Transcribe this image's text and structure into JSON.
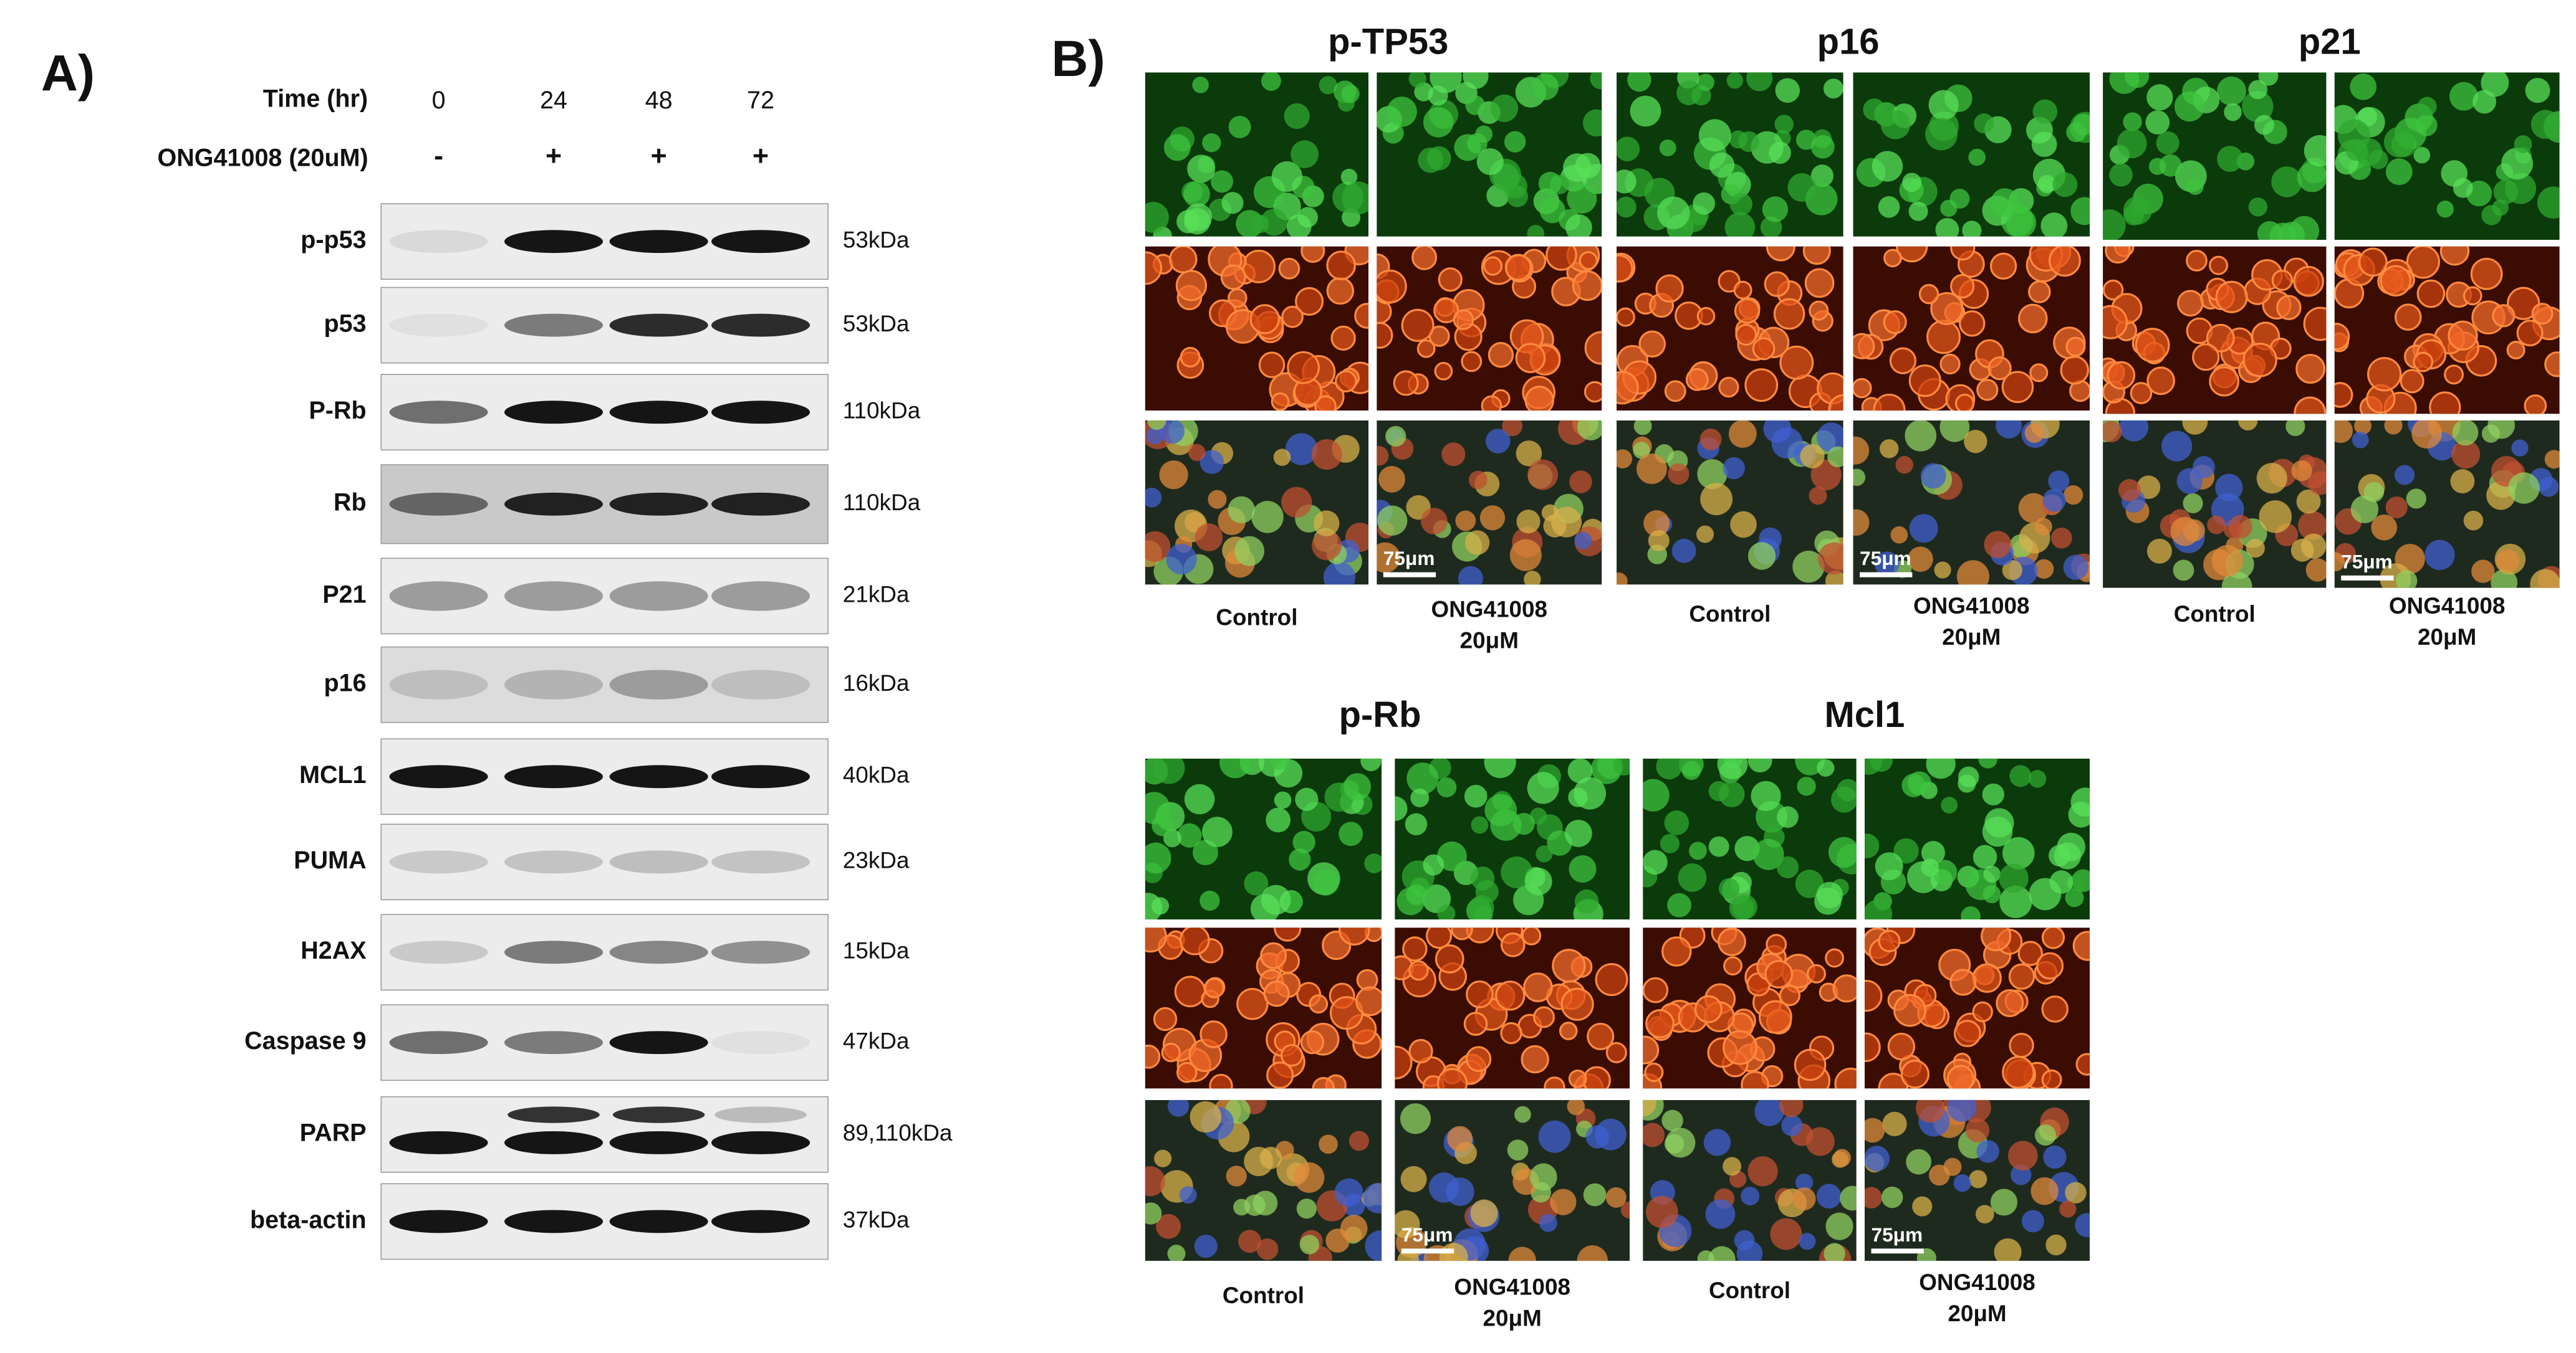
{
  "panel_a": {
    "label": "A)",
    "time_label": "Time (hr)",
    "times": [
      "0",
      "24",
      "48",
      "72"
    ],
    "treatment_label": "ONG41008 (20uM)",
    "treatment": [
      "-",
      "+",
      "+",
      "+"
    ],
    "blots": [
      {
        "protein": "p-p53",
        "size": "53kDa"
      },
      {
        "protein": "p53",
        "size": "53kDa"
      },
      {
        "protein": "P-Rb",
        "size": "110kDa"
      },
      {
        "protein": "Rb",
        "size": "110kDa"
      },
      {
        "protein": "P21",
        "size": "21kDa"
      },
      {
        "protein": "p16",
        "size": "16kDa"
      },
      {
        "protein": "MCL1",
        "size": "40kDa"
      },
      {
        "protein": "PUMA",
        "size": "23kDa"
      },
      {
        "protein": "H2AX",
        "size": "15kDa"
      },
      {
        "protein": "Caspase 9",
        "size": "47kDa"
      },
      {
        "protein": "PARP",
        "size": "89,110kDa"
      },
      {
        "protein": "beta-actin",
        "size": "37kDa"
      }
    ]
  },
  "panel_b": {
    "label": "B)",
    "groups": [
      {
        "title": "p-TP53",
        "control_label": "Control",
        "treated_label": [
          "ONG41008",
          "20μM"
        ],
        "scale_bar": "75μm"
      },
      {
        "title": "p16",
        "control_label": "Control",
        "treated_label": [
          "ONG41008",
          "20μM"
        ],
        "scale_bar": "75μm"
      },
      {
        "title": "p21",
        "control_label": "Control",
        "treated_label": [
          "ONG41008",
          "20μM"
        ],
        "scale_bar": "75μm"
      },
      {
        "title": "p-Rb",
        "control_label": "Control",
        "treated_label": [
          "ONG41008",
          "20μM"
        ],
        "scale_bar": "75μm"
      },
      {
        "title": "Mcl1",
        "control_label": "Control",
        "treated_label": [
          "ONG41008",
          "20μM"
        ],
        "scale_bar": "75μm"
      }
    ]
  }
}
